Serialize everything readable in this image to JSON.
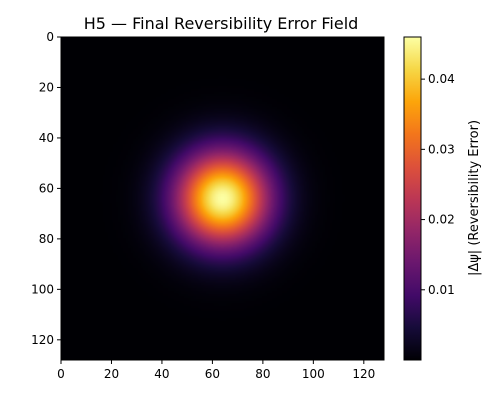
{
  "chart_data": {
    "type": "heatmap",
    "title": "H5 — Final Reversibility Error Field",
    "xlabel": "",
    "ylabel": "",
    "grid": false,
    "colormap": "inferno",
    "shape": [
      128,
      128
    ],
    "x_range": [
      0,
      128
    ],
    "y_range": [
      0,
      128
    ],
    "y_axis": "top-to-bottom",
    "x_ticks": [
      0,
      20,
      40,
      60,
      80,
      100,
      120
    ],
    "y_ticks": [
      0,
      20,
      40,
      60,
      80,
      100,
      120
    ],
    "field": {
      "shape": "gaussian",
      "center_x": 64,
      "center_y": 64,
      "sigma": 13,
      "peak": 0.046,
      "baseline": 0.0
    },
    "colorbar": {
      "label": "|Δψ| (Reversibility Error)",
      "min": 0.0,
      "max": 0.046,
      "ticks": [
        0.01,
        0.02,
        0.03,
        0.04
      ],
      "tick_labels": [
        "0.01",
        "0.02",
        "0.03",
        "0.04"
      ]
    }
  }
}
